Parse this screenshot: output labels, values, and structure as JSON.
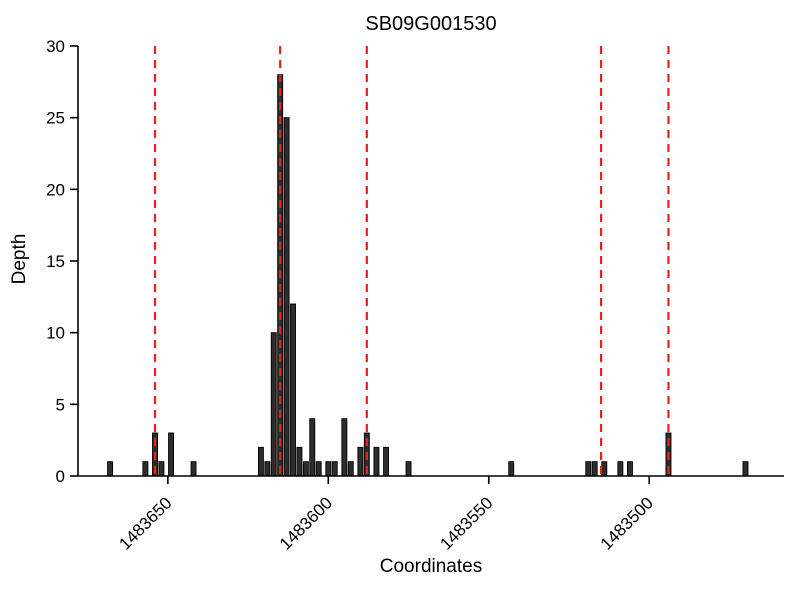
{
  "chart_data": {
    "type": "bar",
    "title": "SB09G001530",
    "xlabel": "Coordinates",
    "ylabel": "Depth",
    "ylim": [
      0,
      30
    ],
    "xlim": [
      1483678,
      1483458
    ],
    "x_axis_reversed": true,
    "grid": false,
    "legend": "none",
    "yticks": [
      0,
      5,
      10,
      15,
      20,
      25,
      30
    ],
    "xticks": [
      1483650,
      1483600,
      1483550,
      1483500
    ],
    "bar_fill": "#2d2d2d",
    "bar_edge": "#000000",
    "axis_color": "#000000",
    "highlight_color": "#e8221c",
    "background": "#ffffff",
    "bars": [
      {
        "x": 1483668,
        "h": 1
      },
      {
        "x": 1483657,
        "h": 1
      },
      {
        "x": 1483654,
        "h": 3
      },
      {
        "x": 1483652,
        "h": 1
      },
      {
        "x": 1483649,
        "h": 3
      },
      {
        "x": 1483642,
        "h": 1
      },
      {
        "x": 1483621,
        "h": 2
      },
      {
        "x": 1483619,
        "h": 1
      },
      {
        "x": 1483617,
        "h": 10
      },
      {
        "x": 1483615,
        "h": 28
      },
      {
        "x": 1483613,
        "h": 25
      },
      {
        "x": 1483611,
        "h": 12
      },
      {
        "x": 1483609,
        "h": 2
      },
      {
        "x": 1483607,
        "h": 1
      },
      {
        "x": 1483605,
        "h": 4
      },
      {
        "x": 1483603,
        "h": 1
      },
      {
        "x": 1483600,
        "h": 1
      },
      {
        "x": 1483598,
        "h": 1
      },
      {
        "x": 1483595,
        "h": 4
      },
      {
        "x": 1483593,
        "h": 1
      },
      {
        "x": 1483590,
        "h": 2
      },
      {
        "x": 1483588,
        "h": 3
      },
      {
        "x": 1483585,
        "h": 2
      },
      {
        "x": 1483582,
        "h": 2
      },
      {
        "x": 1483575,
        "h": 1
      },
      {
        "x": 1483543,
        "h": 1
      },
      {
        "x": 1483519,
        "h": 1
      },
      {
        "x": 1483517,
        "h": 1
      },
      {
        "x": 1483514,
        "h": 1
      },
      {
        "x": 1483509,
        "h": 1
      },
      {
        "x": 1483506,
        "h": 1
      },
      {
        "x": 1483494,
        "h": 3
      },
      {
        "x": 1483470,
        "h": 1
      }
    ],
    "red_dashed_lines": [
      1483654,
      1483615,
      1483588,
      1483515,
      1483494
    ]
  }
}
